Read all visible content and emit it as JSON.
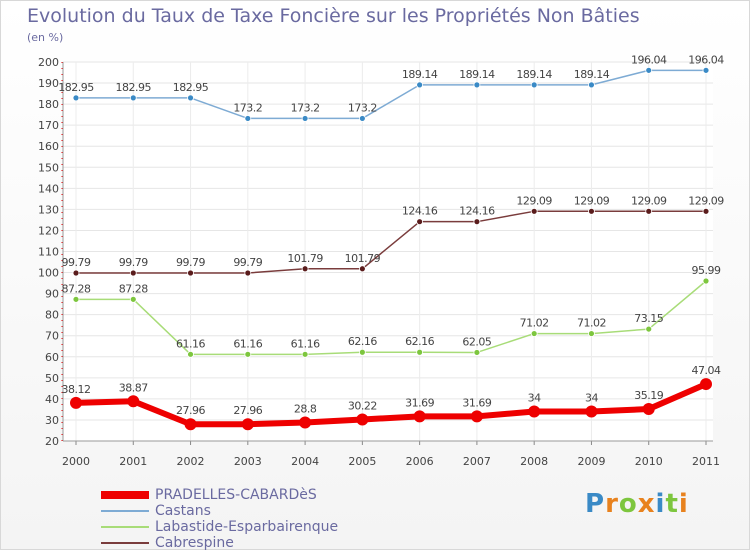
{
  "title": "Evolution du Taux de Taxe Foncière sur les Propriétés Non Bâties",
  "unit": "(en %)",
  "chart_data": {
    "type": "line",
    "title": "Evolution du Taux de Taxe Foncière sur les Propriétés Non Bâties",
    "ylabel": "(en %)",
    "xlabel": "",
    "ylim": [
      20,
      200
    ],
    "y_ticks": [
      20,
      30,
      40,
      50,
      60,
      70,
      80,
      90,
      100,
      110,
      120,
      130,
      140,
      150,
      160,
      170,
      180,
      190,
      200
    ],
    "categories": [
      "2000",
      "2001",
      "2002",
      "2003",
      "2004",
      "2005",
      "2006",
      "2007",
      "2008",
      "2009",
      "2010",
      "2011"
    ],
    "grid": true,
    "legend_position": "bottom-left",
    "series": [
      {
        "name": "Castans",
        "color": "#7eabd4",
        "marker": "#3a8ac6",
        "width": 1.5,
        "r": 3,
        "values": [
          182.95,
          182.95,
          182.95,
          173.2,
          173.2,
          173.2,
          189.14,
          189.14,
          189.14,
          189.14,
          196.04,
          196.04
        ],
        "labels": [
          "182.95",
          "182.95",
          "182.95",
          "173.2",
          "173.2",
          "173.2",
          "189.14",
          "189.14",
          "189.14",
          "189.14",
          "196.04",
          "196.04"
        ]
      },
      {
        "name": "Cabrespine",
        "color": "#7a3c3c",
        "marker": "#5a1c1c",
        "width": 1.5,
        "r": 3,
        "values": [
          99.79,
          99.79,
          99.79,
          99.79,
          101.79,
          101.79,
          124.16,
          124.16,
          129.09,
          129.09,
          129.09,
          129.09
        ],
        "labels": [
          "99.79",
          "99.79",
          "99.79",
          "99.79",
          "101.79",
          "101.79",
          "124.16",
          "124.16",
          "129.09",
          "129.09",
          "129.09",
          "129.09"
        ]
      },
      {
        "name": "Labastide-Esparbairenque",
        "color": "#a8dc78",
        "marker": "#7dc63e",
        "width": 1.5,
        "r": 3,
        "values": [
          87.28,
          87.28,
          61.16,
          61.16,
          61.16,
          62.16,
          62.16,
          62.05,
          71.02,
          71.02,
          73.15,
          95.99
        ],
        "labels": [
          "87.28",
          "87.28",
          "61.16",
          "61.16",
          "61.16",
          "62.16",
          "62.16",
          "62.05",
          "71.02",
          "71.02",
          "73.15",
          "95.99"
        ]
      },
      {
        "name": "PRADELLES-CABARDèS",
        "color": "#ee0000",
        "marker": "#ee0000",
        "width": 6,
        "r": 6,
        "values": [
          38.12,
          38.87,
          27.96,
          27.96,
          28.8,
          30.22,
          31.69,
          31.69,
          34,
          34,
          35.19,
          47.04
        ],
        "labels": [
          "38.12",
          "38.87",
          "27.96",
          "27.96",
          "28.8",
          "30.22",
          "31.69",
          "31.69",
          "34",
          "34",
          "35.19",
          "47.04"
        ]
      }
    ]
  },
  "legend": [
    {
      "name": "PRADELLES-CABARDèS",
      "color": "#ee0000"
    },
    {
      "name": "Castans",
      "color": "#7eabd4"
    },
    {
      "name": "Labastide-Esparbairenque",
      "color": "#a8dc78"
    },
    {
      "name": "Cabrespine",
      "color": "#7a3c3c"
    }
  ],
  "logo": {
    "letters": [
      "P",
      "r",
      "o",
      "x",
      "i",
      "t",
      "i"
    ],
    "colors": [
      "#3a8ac6",
      "#e8821e",
      "#7dc63e",
      "#e8821e",
      "#3a8ac6",
      "#7dc63e",
      "#e8821e"
    ]
  }
}
